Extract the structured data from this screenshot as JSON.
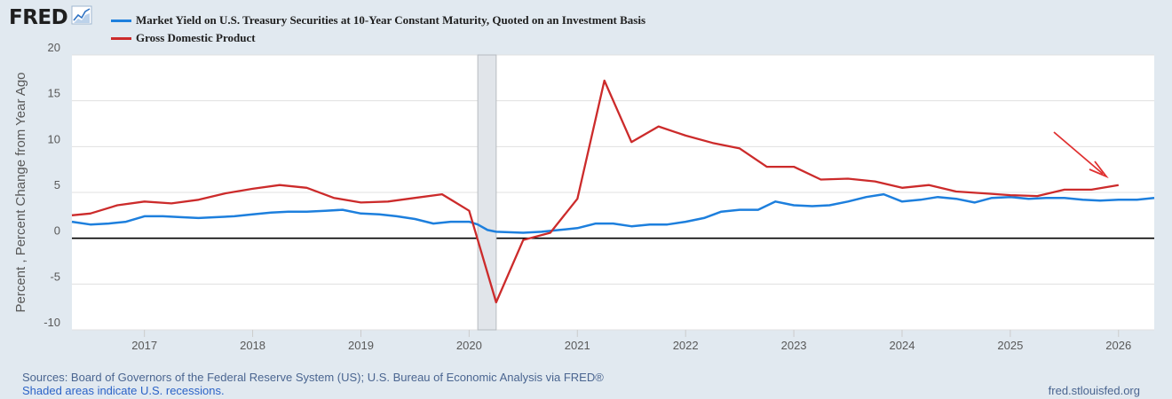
{
  "header": {
    "logo_text": "FRED",
    "logo_icon": "line-chart-icon"
  },
  "legend": [
    {
      "label": "Market Yield on U.S. Treasury Securities at 10-Year Constant Maturity, Quoted on an Investment Basis",
      "color": "#1d7fdd"
    },
    {
      "label": "Gross Domestic Product",
      "color": "#cc2b2b"
    }
  ],
  "footer": {
    "sources": "Sources: Board of Governors of the Federal Reserve System (US); U.S. Bureau of Economic Analysis via FRED®",
    "recession_note": "Shaded areas indicate U.S. recessions.",
    "site": "fred.stlouisfed.org"
  },
  "chart_data": {
    "type": "line",
    "ylabel": "Percent , Percent Change from Year Ago",
    "xlabel": "",
    "ylim": [
      -10,
      20
    ],
    "xlim": [
      2016.33,
      2026.33
    ],
    "y_ticks": [
      20,
      15,
      10,
      5,
      0,
      -5,
      -10
    ],
    "x_ticks": [
      "2017",
      "2018",
      "2019",
      "2020",
      "2021",
      "2022",
      "2023",
      "2024",
      "2025",
      "2026"
    ],
    "grid": true,
    "zero_line": true,
    "recession": [
      2020.08,
      2020.25
    ],
    "annotation": "arrow",
    "series": [
      {
        "name": "Market Yield on U.S. Treasury Securities at 10-Year Constant Maturity, Quoted on an Investment Basis",
        "color": "#1d7fdd",
        "x": [
          2016.33,
          2016.5,
          2016.67,
          2016.83,
          2017.0,
          2017.17,
          2017.33,
          2017.5,
          2017.67,
          2017.83,
          2018.0,
          2018.17,
          2018.33,
          2018.5,
          2018.67,
          2018.83,
          2019.0,
          2019.17,
          2019.33,
          2019.5,
          2019.67,
          2019.83,
          2020.0,
          2020.08,
          2020.17,
          2020.25,
          2020.5,
          2020.67,
          2020.83,
          2021.0,
          2021.17,
          2021.33,
          2021.5,
          2021.67,
          2021.83,
          2022.0,
          2022.17,
          2022.33,
          2022.5,
          2022.67,
          2022.83,
          2023.0,
          2023.17,
          2023.33,
          2023.5,
          2023.67,
          2023.83,
          2024.0,
          2024.17,
          2024.33,
          2024.5,
          2024.67,
          2024.83,
          2025.0,
          2025.17,
          2025.33,
          2025.5,
          2025.67,
          2025.83,
          2026.0,
          2026.17,
          2026.33
        ],
        "values": [
          1.8,
          1.5,
          1.6,
          1.8,
          2.4,
          2.4,
          2.3,
          2.2,
          2.3,
          2.4,
          2.6,
          2.8,
          2.9,
          2.9,
          3.0,
          3.1,
          2.7,
          2.6,
          2.4,
          2.1,
          1.6,
          1.8,
          1.8,
          1.5,
          0.9,
          0.7,
          0.6,
          0.7,
          0.9,
          1.1,
          1.6,
          1.6,
          1.3,
          1.5,
          1.5,
          1.8,
          2.2,
          2.9,
          3.1,
          3.1,
          4.0,
          3.6,
          3.5,
          3.6,
          4.0,
          4.5,
          4.8,
          4.0,
          4.2,
          4.5,
          4.3,
          3.9,
          4.4,
          4.5,
          4.3,
          4.4,
          4.4,
          4.2,
          4.1,
          4.2,
          4.2,
          4.4
        ]
      },
      {
        "name": "Gross Domestic Product",
        "color": "#cc2b2b",
        "x": [
          2016.33,
          2016.5,
          2016.75,
          2017.0,
          2017.25,
          2017.5,
          2017.75,
          2018.0,
          2018.25,
          2018.5,
          2018.75,
          2019.0,
          2019.25,
          2019.5,
          2019.75,
          2020.0,
          2020.25,
          2020.5,
          2020.75,
          2021.0,
          2021.25,
          2021.5,
          2021.75,
          2022.0,
          2022.25,
          2022.5,
          2022.75,
          2023.0,
          2023.25,
          2023.5,
          2023.75,
          2024.0,
          2024.25,
          2024.5,
          2024.75,
          2025.0,
          2025.25,
          2025.5,
          2025.75,
          2026.0
        ],
        "values": [
          2.5,
          2.7,
          3.6,
          4.0,
          3.8,
          4.2,
          4.9,
          5.4,
          5.8,
          5.5,
          4.4,
          3.9,
          4.0,
          4.4,
          4.8,
          3.0,
          -7.0,
          -0.2,
          0.6,
          4.3,
          17.2,
          10.5,
          12.2,
          11.2,
          10.4,
          9.8,
          7.8,
          7.8,
          6.4,
          6.5,
          6.2,
          5.5,
          5.8,
          5.1,
          4.9,
          4.7,
          4.6,
          5.3,
          5.3,
          5.8
        ]
      }
    ]
  }
}
